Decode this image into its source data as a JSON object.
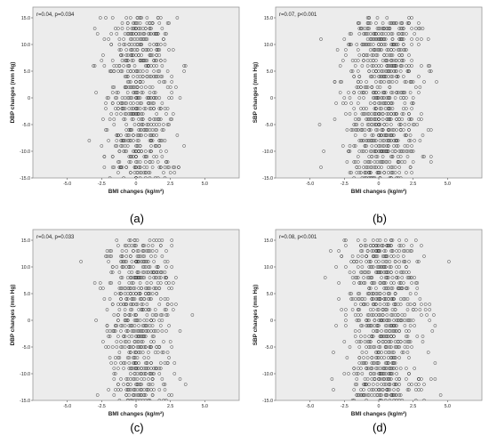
{
  "chart_data": [
    {
      "type": "scatter",
      "panel_label": "(a)",
      "annotation": "r=0.04, p=0.034",
      "xlabel": "BMI changes (kg/m²)",
      "ylabel": "DBP  changes (mm Hg)",
      "xlim": [
        -7.5,
        7.5
      ],
      "ylim": [
        -15,
        17
      ],
      "xticks": [
        "-5.0",
        "-2.5",
        "0",
        "2.5",
        "5.0"
      ],
      "xtick_values": [
        -5,
        -2.5,
        0,
        2.5,
        5
      ],
      "yticks": [
        "15.0",
        "10.0",
        "5.0",
        "0",
        "-5.0",
        "-10.0",
        "-15.0"
      ],
      "ytick_values": [
        15,
        10,
        5,
        0,
        -5,
        -10,
        -15
      ],
      "grid": false,
      "point_count": 650,
      "x_mean": 0.2,
      "x_sd": 1.2,
      "y_range": [
        -15,
        15
      ],
      "y_step": 1,
      "correlation": 0.04
    },
    {
      "type": "scatter",
      "panel_label": "(b)",
      "annotation": "r=0.07, p<0.001",
      "xlabel": "BMI changes (kg/m²)",
      "ylabel": "SBP  changes (mm Hg)",
      "xlim": [
        -7.5,
        7.5
      ],
      "ylim": [
        -15,
        17
      ],
      "xticks": [
        "-5.0",
        "-2.5",
        "0",
        "2.5",
        "5.0"
      ],
      "xtick_values": [
        -5,
        -2.5,
        0,
        2.5,
        5
      ],
      "yticks": [
        "15.0",
        "10.0",
        "5.0",
        "0",
        "-5.0",
        "-10.0",
        "-15.0"
      ],
      "ytick_values": [
        15,
        10,
        5,
        0,
        -5,
        -10,
        -15
      ],
      "grid": false,
      "point_count": 800,
      "x_mean": 0.3,
      "x_sd": 1.4,
      "y_range": [
        -15,
        15
      ],
      "y_step": 1,
      "correlation": 0.07
    },
    {
      "type": "scatter",
      "panel_label": "(c)",
      "annotation": "r=0.04, p=0.033",
      "xlabel": "BMI changes (kg/m²)",
      "ylabel": "DBP  changes (mm Hg)",
      "xlim": [
        -7.5,
        7.5
      ],
      "ylim": [
        -15,
        17
      ],
      "xticks": [
        "-5.0",
        "-2.5",
        "0",
        "2.5",
        "5.0"
      ],
      "xtick_values": [
        -5,
        -2.5,
        0,
        2.5,
        5
      ],
      "yticks": [
        "15.0",
        "10.0",
        "5.0",
        "0",
        "-5.0",
        "-10.0",
        "-15.0"
      ],
      "ytick_values": [
        15,
        10,
        5,
        0,
        -5,
        -10,
        -15
      ],
      "grid": false,
      "point_count": 650,
      "x_mean": 0.2,
      "x_sd": 1.2,
      "y_range": [
        -15,
        15
      ],
      "y_step": 1,
      "correlation": 0.04
    },
    {
      "type": "scatter",
      "panel_label": "(d)",
      "annotation": "r=0.08, p<0.001",
      "xlabel": "BMI changes (kg/m²)",
      "ylabel": "SBP  changes (mm Hg)",
      "xlim": [
        -7.5,
        7.5
      ],
      "ylim": [
        -15,
        17
      ],
      "xticks": [
        "-5.0",
        "-2.5",
        "0",
        "2.5",
        "5.0"
      ],
      "xtick_values": [
        -5,
        -2.5,
        0,
        2.5,
        5
      ],
      "yticks": [
        "15.0",
        "10.0",
        "5.0",
        "0",
        "-5.0",
        "-10.0",
        "-15.0"
      ],
      "ytick_values": [
        15,
        10,
        5,
        0,
        -5,
        -10,
        -15
      ],
      "grid": false,
      "point_count": 800,
      "x_mean": 0.3,
      "x_sd": 1.4,
      "y_range": [
        -15,
        15
      ],
      "y_step": 1,
      "correlation": 0.08
    }
  ],
  "colors": {
    "plot_background": "#ececec",
    "marker_stroke": "#333333",
    "axis": "#666666",
    "text": "#222222"
  }
}
